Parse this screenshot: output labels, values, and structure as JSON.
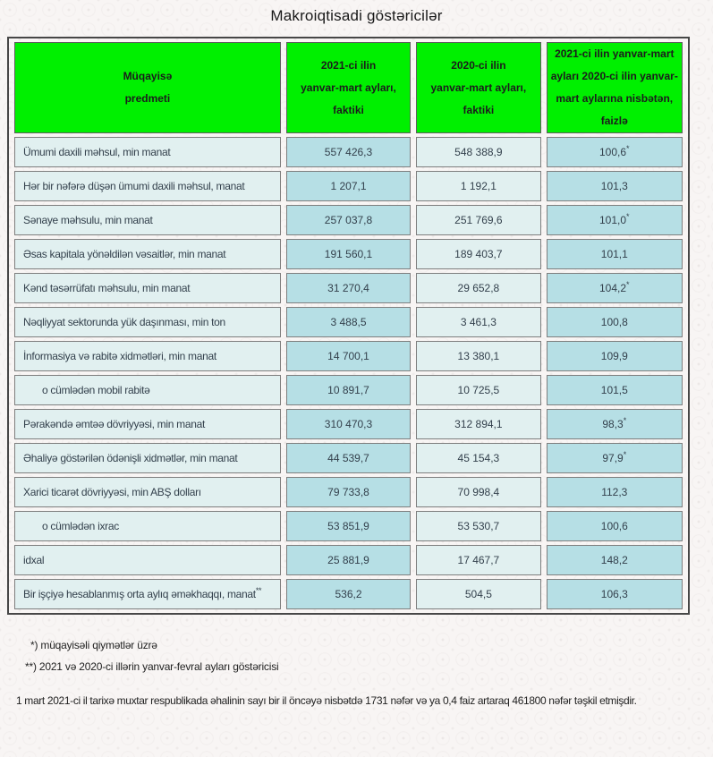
{
  "title": "Makroiqtisadi göstəricilər",
  "table": {
    "headers": [
      "Müqayisə\npredmeti",
      "2021-ci ilin\nyanvar-mart ayları,\nfaktiki",
      "2020-ci ilin\nyanvar-mart ayları,\nfaktiki",
      "2021-ci ilin yanvar-mart\nayları 2020-ci ilin yanvar-\nmart aylarına nisbətən,\nfaizlə"
    ],
    "rows": [
      {
        "label": "Ümumi daxili məhsul, min manat",
        "label_sup": "",
        "v2021": "557 426,3",
        "v2020": "548 388,9",
        "pct": "100,6",
        "pct_sup": "*",
        "indent": false
      },
      {
        "label": "Hər bir nəfərə düşən ümumi daxili məhsul, manat",
        "label_sup": "",
        "v2021": "1 207,1",
        "v2020": "1 192,1",
        "pct": "101,3",
        "pct_sup": "",
        "indent": false
      },
      {
        "label": "Sənaye məhsulu, min manat",
        "label_sup": "",
        "v2021": "257 037,8",
        "v2020": "251 769,6",
        "pct": "101,0",
        "pct_sup": "*",
        "indent": false
      },
      {
        "label": "Əsas kapitala yönəldilən vəsaitlər, min manat",
        "label_sup": "",
        "v2021": "191 560,1",
        "v2020": "189 403,7",
        "pct": "101,1",
        "pct_sup": "",
        "indent": false
      },
      {
        "label": "Kənd təsərrüfatı məhsulu, min manat",
        "label_sup": "",
        "v2021": "31 270,4",
        "v2020": "29 652,8",
        "pct": "104,2",
        "pct_sup": "*",
        "indent": false
      },
      {
        "label": "Nəqliyyat sektorunda yük daşınması, min ton",
        "label_sup": "",
        "v2021": "3 488,5",
        "v2020": "3 461,3",
        "pct": "100,8",
        "pct_sup": "",
        "indent": false
      },
      {
        "label": "İnformasiya və rabitə xidmətləri, min manat",
        "label_sup": "",
        "v2021": "14 700,1",
        "v2020": "13 380,1",
        "pct": "109,9",
        "pct_sup": "",
        "indent": false
      },
      {
        "label": "o cümlədən mobil rabitə",
        "label_sup": "",
        "v2021": "10 891,7",
        "v2020": "10 725,5",
        "pct": "101,5",
        "pct_sup": "",
        "indent": true
      },
      {
        "label": "Pərakəndə əmtəə dövriyyəsi, min manat",
        "label_sup": "",
        "v2021": "310 470,3",
        "v2020": "312 894,1",
        "pct": "98,3",
        "pct_sup": "*",
        "indent": false
      },
      {
        "label": "Əhaliyə göstərilən ödənişli xidmətlər, min manat",
        "label_sup": "",
        "v2021": "44 539,7",
        "v2020": "45 154,3",
        "pct": "97,9",
        "pct_sup": "*",
        "indent": false
      },
      {
        "label": "Xarici ticarət dövriyyəsi, min ABŞ dolları",
        "label_sup": "",
        "v2021": "79 733,8",
        "v2020": "70 998,4",
        "pct": "112,3",
        "pct_sup": "",
        "indent": false
      },
      {
        "label": "o cümlədən ixrac",
        "label_sup": "",
        "v2021": "53 851,9",
        "v2020": "53 530,7",
        "pct": "100,6",
        "pct_sup": "",
        "indent": true
      },
      {
        "label": "idxal",
        "label_sup": "",
        "v2021": "25 881,9",
        "v2020": "17 467,7",
        "pct": "148,2",
        "pct_sup": "",
        "indent": false
      },
      {
        "label": "Bir işçiyə hesablanmış orta aylıq əməkhaqqı, manat",
        "label_sup": "**",
        "v2021": "536,2",
        "v2020": "504,5",
        "pct": "106,3",
        "pct_sup": "",
        "indent": false
      }
    ]
  },
  "footnotes": [
    "*) müqayisəli qiymətlər üzrə",
    "**) 2021 və 2020-ci illərin yanvar-fevral ayları göstəricisi"
  ],
  "bottom_text": "1 mart 2021-ci il tarixə muxtar respublikada əhalinin sayı bir il öncəyə nisbətdə 1731 nəfər və ya 0,4 faiz artaraq 461800 nəfər təşkil etmişdir.",
  "colors": {
    "header_bg": "#00F000",
    "header_text": "#1C1C1C",
    "cell_light": "#E1F0F0",
    "cell_accent": "#B6DFE5",
    "border_outer": "#474747",
    "border_cell": "#7E7E7E",
    "text_dark": "#33404C"
  }
}
